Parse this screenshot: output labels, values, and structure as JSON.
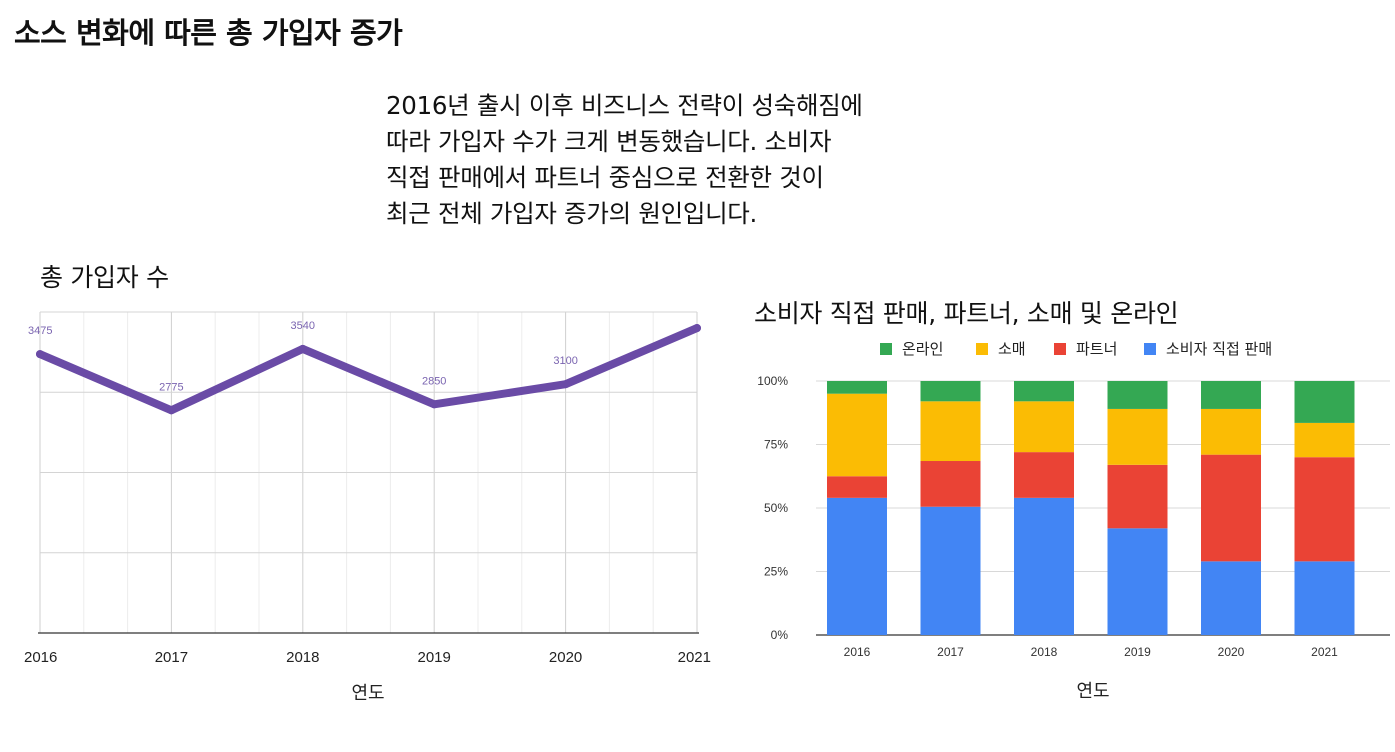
{
  "page": {
    "title": "소스 변화에 따른 총 가입자 증가",
    "summary_lines": [
      "2016년 출시 이후 비즈니스 전략이 성숙해짐에",
      "따라 가입자 수가 크게 변동했습니다. 소비자",
      "직접 판매에서 파트너 중심으로 전환한 것이",
      "최근 전체 가입자 증가의 원인입니다."
    ]
  },
  "chart_data": [
    {
      "type": "line",
      "title": "총 가입자 수",
      "xlabel": "연도",
      "x": [
        "2016",
        "2017",
        "2018",
        "2019",
        "2020",
        "2021"
      ],
      "values": [
        3475,
        2775,
        3540,
        2850,
        3100,
        3800
      ],
      "data_labels": [
        "3475",
        "2775",
        "3540",
        "2850",
        "3100",
        ""
      ],
      "ylim": [
        0,
        4000
      ],
      "grid": true,
      "color": "#6a4ba6"
    },
    {
      "type": "bar",
      "stacked": true,
      "title": "소비자 직접 판매, 파트너, 소매 및 온라인",
      "xlabel": "연도",
      "categories": [
        "2016",
        "2017",
        "2018",
        "2019",
        "2020",
        "2021"
      ],
      "yticks": [
        "0%",
        "25%",
        "50%",
        "75%",
        "100%"
      ],
      "ylim": [
        0,
        100
      ],
      "legend_position": "top",
      "series": [
        {
          "name": "소비자 직접 판매",
          "color": "#4285f4",
          "values": [
            54,
            50.5,
            54,
            42,
            29,
            29
          ]
        },
        {
          "name": "파트너",
          "color": "#ea4335",
          "values": [
            8.5,
            18,
            18,
            25,
            42,
            41
          ]
        },
        {
          "name": "소매",
          "color": "#fbbc04",
          "values": [
            32.5,
            23.5,
            20,
            22,
            18,
            13.5
          ]
        },
        {
          "name": "온라인",
          "color": "#34a853",
          "values": [
            5,
            8,
            8,
            11,
            11,
            16.5
          ]
        }
      ],
      "legend_order": [
        3,
        2,
        1,
        0
      ]
    }
  ]
}
